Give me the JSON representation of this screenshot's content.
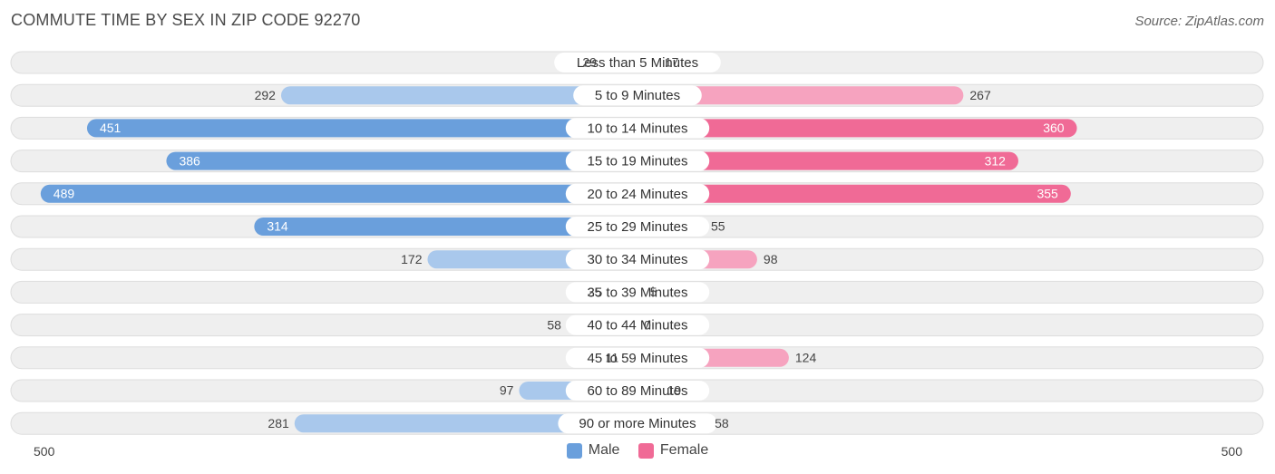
{
  "title": "COMMUTE TIME BY SEX IN ZIP CODE 92270",
  "source": "Source: ZipAtlas.com",
  "colors": {
    "male": "#6a9fdc",
    "male_light": "#a9c8ec",
    "female": "#f06a96",
    "female_light": "#f6a3bf",
    "row_bg": "#efefef",
    "row_border": "#dddddd"
  },
  "legend": {
    "male": "Male",
    "female": "Female"
  },
  "axis": {
    "left_label": "500",
    "right_label": "500"
  },
  "chart_data": {
    "type": "bar",
    "orientation": "horizontal-butterfly",
    "title": "COMMUTE TIME BY SEX IN ZIP CODE 92270",
    "xlim": [
      0,
      500
    ],
    "categories": [
      "Less than 5 Minutes",
      "5 to 9 Minutes",
      "10 to 14 Minutes",
      "15 to 19 Minutes",
      "20 to 24 Minutes",
      "25 to 29 Minutes",
      "30 to 34 Minutes",
      "35 to 39 Minutes",
      "40 to 44 Minutes",
      "45 to 59 Minutes",
      "60 to 89 Minutes",
      "90 or more Minutes"
    ],
    "series": [
      {
        "name": "Male",
        "values": [
          29,
          292,
          451,
          386,
          489,
          314,
          172,
          25,
          58,
          11,
          97,
          281
        ]
      },
      {
        "name": "Female",
        "values": [
          17,
          267,
          360,
          312,
          355,
          55,
          98,
          5,
          0,
          124,
          19,
          58
        ]
      }
    ],
    "legend_position": "bottom-center"
  }
}
